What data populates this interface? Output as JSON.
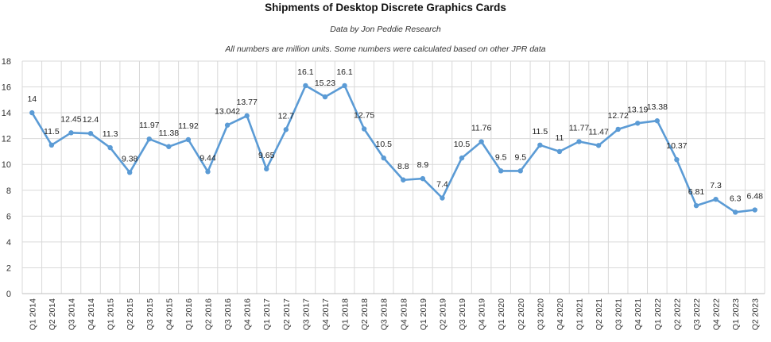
{
  "chart_data": {
    "type": "line",
    "title": "Shipments of Desktop Discrete Graphics Cards",
    "subtitle": "Data by Jon Peddie Research",
    "note": "All numbers are million units. Some numbers were calculated based on other JPR data",
    "xlabel": "",
    "ylabel": "",
    "ylim": [
      0,
      18
    ],
    "yticks": [
      0,
      2,
      4,
      6,
      8,
      10,
      12,
      14,
      16,
      18
    ],
    "grid": true,
    "legend": "none",
    "color": "#5b9bd5",
    "categories": [
      "Q1 2014",
      "Q2 2014",
      "Q3 2014",
      "Q4 2014",
      "Q1 2015",
      "Q2 2015",
      "Q3 2015",
      "Q4 2015",
      "Q1 2016",
      "Q2 2016",
      "Q3 2016",
      "Q4 2016",
      "Q1 2017",
      "Q2 2017",
      "Q3 2017",
      "Q4 2017",
      "Q1 2018",
      "Q2 2018",
      "Q3 2018",
      "Q4 2018",
      "Q1 2019",
      "Q2 2019",
      "Q3 2019",
      "Q4 2019",
      "Q1 2020",
      "Q2 2020",
      "Q3 2020",
      "Q4 2020",
      "Q1 2021",
      "Q2 2021",
      "Q3 2021",
      "Q4 2021",
      "Q1 2022",
      "Q2 2022",
      "Q3 2022",
      "Q4 2022",
      "Q1 2023",
      "Q2 2023"
    ],
    "values": [
      14,
      11.5,
      12.45,
      12.4,
      11.3,
      9.38,
      11.97,
      11.38,
      11.92,
      9.44,
      13.042,
      13.77,
      9.65,
      12.7,
      16.1,
      15.23,
      16.1,
      12.75,
      10.5,
      8.8,
      8.9,
      7.4,
      10.5,
      11.76,
      9.5,
      9.5,
      11.5,
      11,
      11.77,
      11.47,
      12.72,
      13.19,
      13.38,
      10.37,
      6.81,
      7.3,
      6.3,
      6.48
    ],
    "labels": [
      "14",
      "11.5",
      "12.45",
      "12.4",
      "11.3",
      "9.38",
      "11.97",
      "11.38",
      "11.92",
      "9.44",
      "13.042",
      "13.77",
      "9.65",
      "12.7",
      "16.1",
      "15.23",
      "16.1",
      "12.75",
      "10.5",
      "8.8",
      "8.9",
      "7.4",
      "10.5",
      "11.76",
      "9.5",
      "9.5",
      "11.5",
      "11",
      "11.77",
      "11.47",
      "12.72",
      "13.19",
      "13.38",
      "10.37",
      "6.81",
      "7.3",
      "6.3",
      "6.48"
    ]
  }
}
